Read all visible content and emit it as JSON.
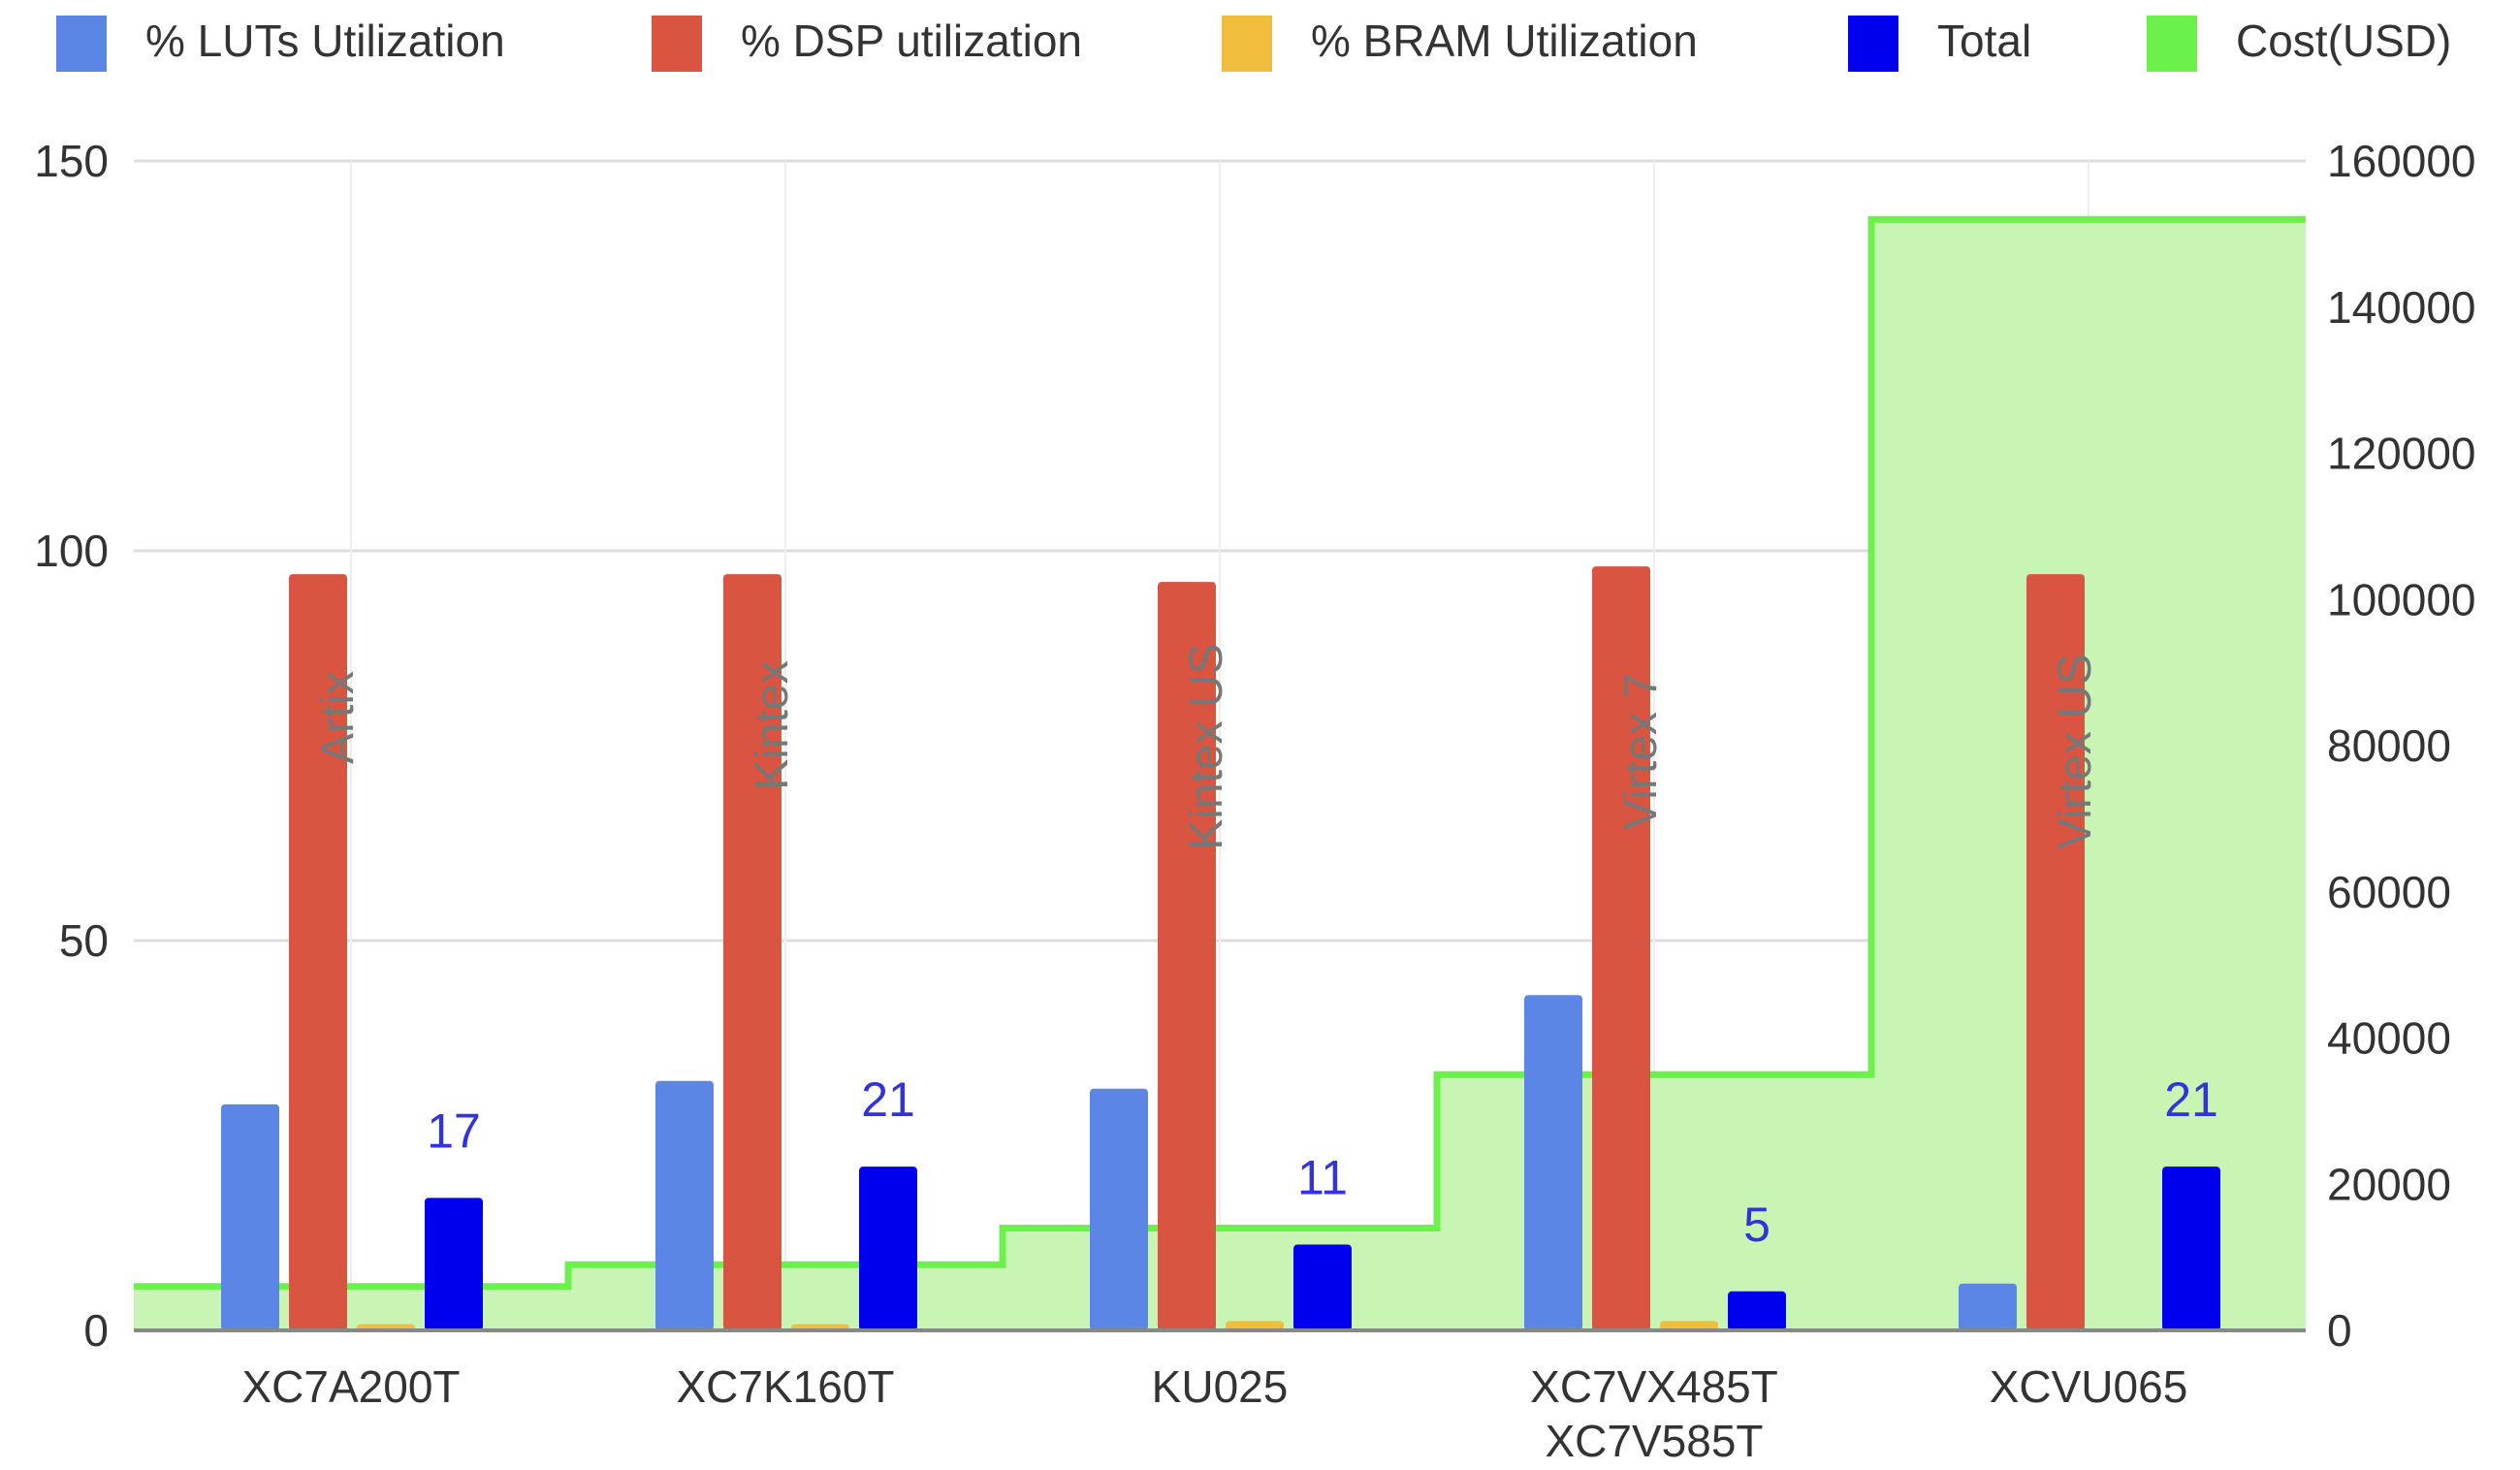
{
  "chart_data": {
    "type": "bar",
    "categories": [
      "XC7A200T",
      "XC7K160T",
      "KU025",
      "XC7VX485T\nXC7V585T",
      "XCVU065"
    ],
    "series": [
      {
        "name": "% LUTs Utilization",
        "axis": "left",
        "values": [
          29,
          32,
          31,
          43,
          6
        ]
      },
      {
        "name": "% DSP utilization",
        "axis": "left",
        "values": [
          97,
          97,
          96,
          98,
          97
        ]
      },
      {
        "name": "% BRAM Utilization",
        "axis": "left",
        "values": [
          0.8,
          0.8,
          1.2,
          1.2,
          0
        ]
      },
      {
        "name": "Total",
        "axis": "left",
        "values": [
          17,
          21,
          11,
          5,
          21
        ],
        "data_labels": [
          "17",
          "21",
          "11",
          "5",
          "21"
        ]
      },
      {
        "name": "Cost(USD)",
        "axis": "right",
        "type": "stepped-area",
        "values": [
          6000,
          9000,
          14000,
          35000,
          152000
        ]
      }
    ],
    "annotations": [
      "Artix",
      "Kintex",
      "Kintex US",
      "Virtex 7",
      "Virtex US"
    ],
    "left_axis": {
      "min": 0,
      "max": 150,
      "ticks": [
        0,
        50,
        100,
        150
      ]
    },
    "right_axis": {
      "min": 0,
      "max": 160000,
      "ticks": [
        0,
        20000,
        40000,
        60000,
        80000,
        100000,
        120000,
        140000,
        160000
      ]
    },
    "legend_position": "top",
    "grid": true,
    "colors": {
      "luts": "#5B86E5",
      "dsp": "#D95541",
      "bram": "#F0BE3C",
      "total": "#0000EE",
      "cost_line": "#6CF04A",
      "cost_fill": "#C8F5B4",
      "label_total": "#3333DD",
      "annotation": "#777777",
      "grid": "#DDDDDD",
      "axis_text": "#333333"
    }
  }
}
